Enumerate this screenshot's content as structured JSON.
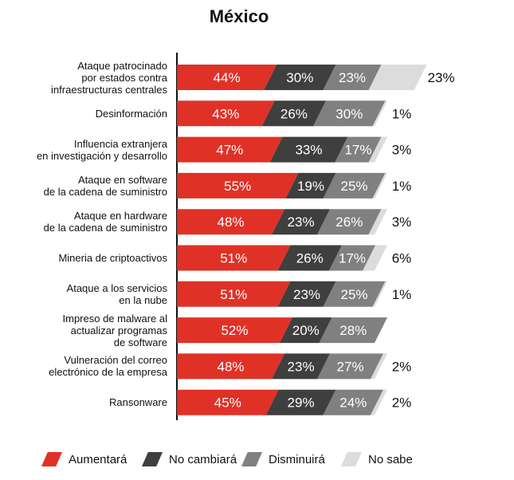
{
  "chart_data": {
    "type": "bar",
    "title": "México",
    "categories": [
      "Ataque patrocinado por estados contra infraestructuras centrales",
      "Desinformación",
      "Influencia extranjera en investigación y desarrollo",
      "Ataque en software de la cadena de suministro",
      "Ataque en hardware de la cadena de suministro",
      "Mineria de criptoactivos",
      "Ataque a los servicios en la nube",
      "Impreso de malware al actualizar programas de software",
      "Vulneración del correo electrónico de la empresa",
      "Ransonware"
    ],
    "category_lines": [
      [
        "Ataque patrocinado",
        "por estados contra",
        "infraestructuras centrales"
      ],
      [
        "Desinformación"
      ],
      [
        "Influencia extranjera",
        "en investigación y desarrollo"
      ],
      [
        "Ataque en software",
        "de la cadena de suministro"
      ],
      [
        "Ataque en hardware",
        "de la cadena de suministro"
      ],
      [
        "Mineria de criptoactivos"
      ],
      [
        "Ataque a los servicios",
        "en la nube"
      ],
      [
        "Impreso de malware al",
        "actualizar programas",
        "de software"
      ],
      [
        "Vulneración del correo",
        "electrónico de la empresa"
      ],
      [
        "Ransonware"
      ]
    ],
    "series": [
      {
        "name": "Aumentará",
        "color": "#e03127",
        "values": [
          44,
          43,
          47,
          55,
          48,
          51,
          51,
          52,
          48,
          45
        ]
      },
      {
        "name": "No cambiará",
        "color": "#3f3f3f",
        "values": [
          30,
          26,
          33,
          19,
          23,
          26,
          23,
          20,
          23,
          29
        ]
      },
      {
        "name": "Disminuirá",
        "color": "#808080",
        "values": [
          23,
          30,
          17,
          25,
          26,
          17,
          25,
          28,
          27,
          24
        ]
      },
      {
        "name": "No sabe",
        "color": "#dcdcdc",
        "values": [
          23,
          1,
          3,
          1,
          3,
          6,
          1,
          0,
          2,
          2
        ]
      }
    ],
    "value_labels": [
      [
        "44%",
        "30%",
        "23%",
        "23%"
      ],
      [
        "43%",
        "26%",
        "30%",
        "1%"
      ],
      [
        "47%",
        "33%",
        "17%",
        "3%"
      ],
      [
        "55%",
        "19%",
        "25%",
        "1%"
      ],
      [
        "48%",
        "23%",
        "26%",
        "3%"
      ],
      [
        "51%",
        "26%",
        "17%",
        "6%"
      ],
      [
        "51%",
        "23%",
        "25%",
        "1%"
      ],
      [
        "52%",
        "20%",
        "28%",
        ""
      ],
      [
        "48%",
        "23%",
        "27%",
        "2%"
      ],
      [
        "45%",
        "29%",
        "24%",
        "2%"
      ]
    ],
    "legend": {
      "placement": "bottom"
    }
  }
}
